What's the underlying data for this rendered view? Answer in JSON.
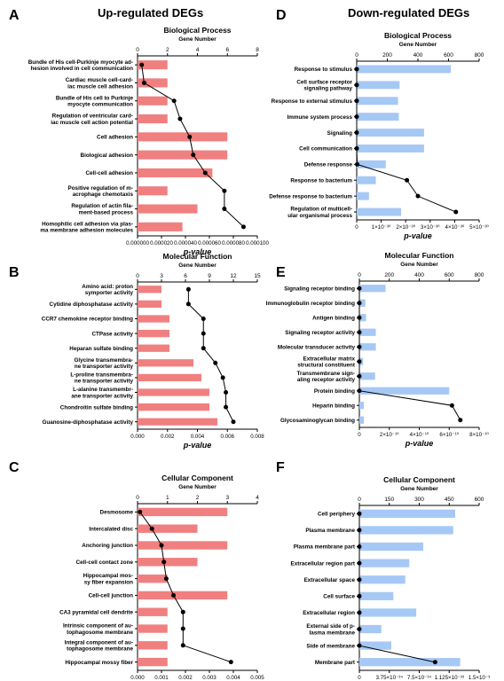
{
  "headers": {
    "left": "Up-regulated DEGs",
    "right": "Down-regulated DEGs"
  },
  "chart_data": [
    {
      "panel": "A",
      "type": "bar",
      "orientation": "horizontal",
      "color": "#f08080",
      "title": "Biological Process",
      "gene_axis_title": "Gene Number",
      "xlabel": "p-value",
      "pticks": [
        "0.000000",
        "0.000020",
        "0.000040",
        "0.000060",
        "0.000080",
        "0.000100"
      ],
      "pmax": 0.0001,
      "gticks": [
        "0",
        "2",
        "4",
        "6",
        "8"
      ],
      "gmax": 8,
      "categories": [
        "Bundle of His cell-Purkinje myocyte ad-|hesion involved in cell communication",
        "Cardiac muscle cell-card-|iac muscle cell adhesion",
        "Bundle of His cell to Purkinje|myocyte communication",
        "Regulation of ventricular card-|iac muscle cell action potential",
        "Cell adhesion",
        "Biological adhesion",
        "Cell-cell adhesion",
        "Positive regulation of m-|acrophage chemotaxis",
        "Regulation of actin fila-|ment-based process",
        "Homophilic cell adhesion via plas-|ma membrane adhesion molecules"
      ],
      "gene_numbers": [
        2,
        2,
        2,
        2,
        6,
        6,
        5,
        2,
        4,
        3
      ],
      "p_values": [
        3.5e-06,
        5.5e-06,
        3.05e-05,
        3.55e-05,
        4.35e-05,
        4.65e-05,
        5.65e-05,
        7.25e-05,
        7.25e-05,
        8.85e-05
      ]
    },
    {
      "panel": "B",
      "type": "bar",
      "orientation": "horizontal",
      "color": "#f08080",
      "title": "Molecular Function",
      "gene_axis_title": "Gene Number",
      "xlabel": "p-value",
      "pticks": [
        "0.000",
        "0.002",
        "0.004",
        "0.006",
        "0.008"
      ],
      "pmax": 0.008,
      "gticks": [
        "0",
        "3",
        "6",
        "9",
        "12",
        "15"
      ],
      "gmax": 15,
      "categories": [
        "Amino acid: proton|symporter activity",
        "Cytidine diphosphatase activity",
        "CCR7 chemokine receptor binding",
        "CTPase activity",
        "Heparan sulfate binding",
        "Glycine transmembra-|ne transporter activity",
        "L-proline transmembra-|ne transporter activity",
        "L-alanine transmembr-|ane transporter activity",
        "Chondroitin sulfate binding",
        "Guanosine-diphosphatase activity"
      ],
      "gene_numbers": [
        3,
        3,
        4,
        4,
        4,
        7,
        8,
        9,
        9,
        10
      ],
      "p_values": [
        0.0034,
        0.0034,
        0.0044,
        0.0044,
        0.0044,
        0.0052,
        0.0057,
        0.0059,
        0.0059,
        0.0064
      ]
    },
    {
      "panel": "C",
      "type": "bar",
      "orientation": "horizontal",
      "color": "#f08080",
      "title": "Cellular Component",
      "gene_axis_title": "Gene Number",
      "xlabel": "p-value",
      "pticks": [
        "0.000",
        "0.001",
        "0.002",
        "0.003",
        "0.004",
        "0.005"
      ],
      "pmax": 0.005,
      "gticks": [
        "0",
        "1",
        "2",
        "3",
        "4"
      ],
      "gmax": 4,
      "categories": [
        "Desmosome",
        "Intercalated disc",
        "Anchoring junction",
        "Cell-cell contact zone",
        "Hippocampal mos-|sy fiber expansion",
        "Cell-cell junction",
        "CA3 pyramidal cell dendrite",
        "Intrinsic component of au-|tophagosome membrane",
        "Integral component of au-|tophagosome membrane",
        "Hippocampal mossy fiber"
      ],
      "gene_numbers": [
        3,
        2,
        3,
        2,
        1,
        3,
        1,
        1,
        1,
        1
      ],
      "p_values": [
        0.0001,
        0.0006,
        0.001,
        0.0011,
        0.0012,
        0.0015,
        0.0019,
        0.0019,
        0.0019,
        0.0039
      ]
    },
    {
      "panel": "D",
      "type": "bar",
      "orientation": "horizontal",
      "color": "#a6c8f5",
      "title": "Biological Process",
      "gene_axis_title": "Gene Number",
      "xlabel": "p-value",
      "pticks": [
        "0",
        "1×10⁻³⁰",
        "2×10⁻³⁰",
        "3×10⁻³⁰",
        "4×10⁻³⁰",
        "5×10⁻³⁰"
      ],
      "pmax": 5,
      "gticks": [
        "0",
        "200",
        "400",
        "600",
        "800"
      ],
      "gmax": 800,
      "categories": [
        "Response to stimulus",
        "Cell surface receptor|signaling pathway",
        "Response to external stimulus",
        "Immune system process",
        "Signaling",
        "Cell communication",
        "Defense response",
        "Response to bacterium",
        "Defense response to bacterium",
        "Regulation of multicell-|ular organismal process"
      ],
      "gene_numbers": [
        615,
        280,
        270,
        275,
        440,
        440,
        190,
        125,
        80,
        290
      ],
      "p_values": [
        0.0,
        0.0,
        0.0,
        0.0,
        0.0,
        0.0,
        0.02,
        2.05,
        2.5,
        4.05
      ]
    },
    {
      "panel": "E",
      "type": "bar",
      "orientation": "horizontal",
      "color": "#a6c8f5",
      "title": "Molecular Function",
      "gene_axis_title": "Gene Number",
      "xlabel": "p-value",
      "pticks": [
        "0",
        "2×10⁻¹⁰",
        "4×10⁻¹⁰",
        "6×10⁻¹⁰",
        "8×10⁻¹⁰"
      ],
      "pmax": 8.6,
      "gticks": [
        "0",
        "200",
        "400",
        "600",
        "800"
      ],
      "gmax": 800,
      "categories": [
        "Signaling receptor binding",
        "Immunoglobulin receptor binding",
        "Antigen binding",
        "Signaling receptor activity",
        "Molecular transducer activity",
        "Extracellular matrix|structural constituent",
        "Transmembrane sign-|aling receptor activity",
        "Protein binding",
        "Heparin binding",
        "Glycosaminoglycan binding"
      ],
      "gene_numbers": [
        175,
        40,
        45,
        110,
        110,
        25,
        105,
        600,
        30,
        30
      ],
      "p_values": [
        0.0,
        0.0,
        0.0,
        0.0,
        0.0,
        0.0,
        0.0,
        0.0,
        6.65,
        7.25
      ]
    },
    {
      "panel": "F",
      "type": "bar",
      "orientation": "horizontal",
      "color": "#a6c8f5",
      "title": "Cellular Component",
      "gene_axis_title": "Gene Number",
      "xlabel": "p-value",
      "pticks": [
        "0",
        "3.75×10⁻³⁴",
        "7.5×10⁻³⁴",
        "1.125×10⁻³³",
        "1.5×10⁻³"
      ],
      "pmax": 15.5,
      "gticks": [
        "0",
        "150",
        "300",
        "450",
        "600"
      ],
      "gmax": 600,
      "categories": [
        "Cell periphery",
        "Plasma membrane",
        "Plasma membrane part",
        "Extracellular region part",
        "Extracellular space",
        "Cell surface",
        "Extracellular region",
        "External side of p-|lasma membrane",
        "Side of membrane",
        "Membrane part"
      ],
      "gene_numbers": [
        480,
        470,
        320,
        250,
        230,
        170,
        285,
        110,
        160,
        505
      ],
      "p_values": [
        0.0,
        0.0,
        0.0,
        0.0,
        0.0,
        0.0,
        0.0,
        0.0,
        0.0,
        9.8
      ]
    }
  ]
}
